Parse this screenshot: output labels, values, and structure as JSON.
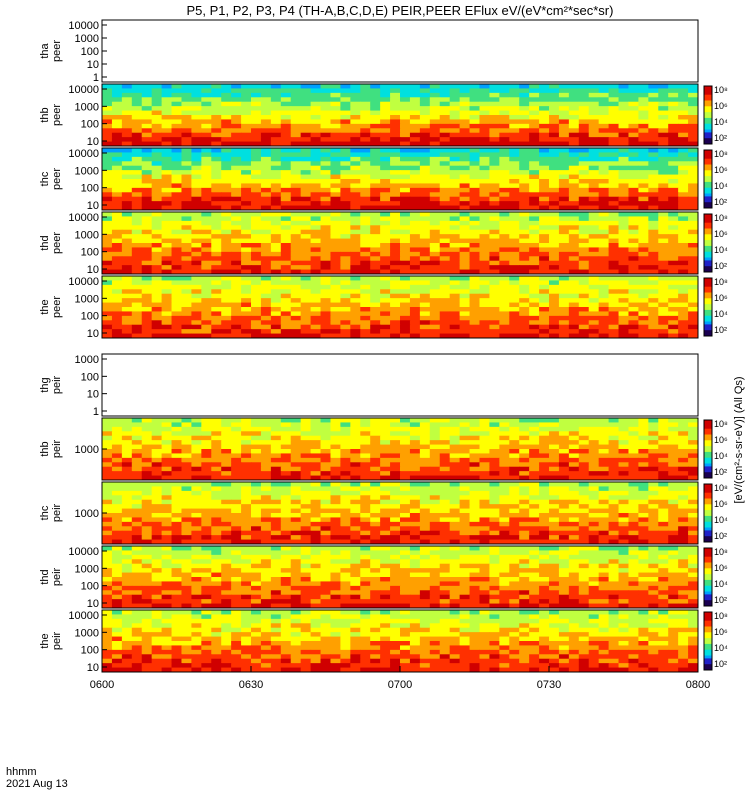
{
  "title": "P5, P1, P2, P3, P4 (TH-A,B,C,D,E) PEIR,PEER EFlux eV/(eV*cm²*sec*sr)",
  "colors": {
    "background": "#ffffff",
    "axis": "#000000",
    "colormap": [
      "#1a0050",
      "#2020c8",
      "#00a0ff",
      "#00e0e0",
      "#40e080",
      "#c0ff40",
      "#ffff00",
      "#ffa000",
      "#ff3000",
      "#d00000"
    ]
  },
  "chart_data": {
    "type": "heatmap",
    "x_ticks": [
      "0600",
      "0630",
      "0700",
      "0730",
      "0800"
    ],
    "x_range": [
      "0600",
      "0800"
    ],
    "x_label_left": [
      "hhmm",
      "2021 Aug 13"
    ],
    "colorbar_label": "[eV/(cm²-s-sr-eV)] (All Qs)",
    "colorbar_ticks": [
      "10²",
      "10⁴",
      "10⁶",
      "10⁸"
    ],
    "panels": [
      {
        "label": [
          "tha",
          "peer"
        ],
        "y_ticks": [
          "1",
          "10",
          "100",
          "1000",
          "10000"
        ],
        "empty": true,
        "colorbar": false
      },
      {
        "label": [
          "thb",
          "peer"
        ],
        "y_ticks": [
          "10",
          "100",
          "1000",
          "10000"
        ],
        "empty": false,
        "colorbar": true
      },
      {
        "label": [
          "thc",
          "peer"
        ],
        "y_ticks": [
          "10",
          "100",
          "1000",
          "10000"
        ],
        "empty": false,
        "colorbar": true
      },
      {
        "label": [
          "thd",
          "peer"
        ],
        "y_ticks": [
          "10",
          "100",
          "1000",
          "10000"
        ],
        "empty": false,
        "colorbar": true
      },
      {
        "label": [
          "the",
          "peer"
        ],
        "y_ticks": [
          "10",
          "100",
          "1000",
          "10000"
        ],
        "empty": false,
        "colorbar": true
      },
      {
        "label": [
          "thg",
          "peir"
        ],
        "y_ticks": [
          "1",
          "10",
          "100",
          "1000"
        ],
        "empty": true,
        "colorbar": false
      },
      {
        "label": [
          "thb",
          "peir"
        ],
        "y_ticks": [
          "1000"
        ],
        "empty": false,
        "colorbar": true
      },
      {
        "label": [
          "thc",
          "peir"
        ],
        "y_ticks": [
          "1000"
        ],
        "empty": false,
        "colorbar": true
      },
      {
        "label": [
          "thd",
          "peir"
        ],
        "y_ticks": [
          "10",
          "100",
          "1000",
          "10000"
        ],
        "empty": false,
        "colorbar": true
      },
      {
        "label": [
          "the",
          "peir"
        ],
        "y_ticks": [
          "10",
          "100",
          "1000",
          "10000"
        ],
        "empty": false,
        "colorbar": true
      }
    ]
  }
}
